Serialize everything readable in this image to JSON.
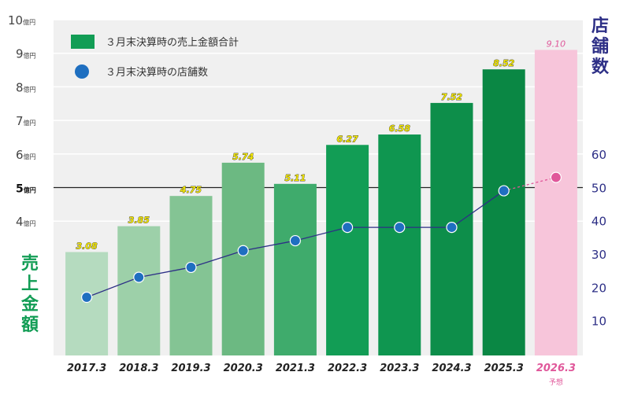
{
  "chart_data": {
    "type": "bar+line",
    "categories": [
      "2017.3",
      "2018.3",
      "2019.3",
      "2020.3",
      "2021.3",
      "2022.3",
      "2023.3",
      "2024.3",
      "2025.3",
      "2026.3"
    ],
    "forecast_note": "予想",
    "left_axis": {
      "title": "売上金額",
      "ylim": [
        0,
        10
      ],
      "ticks": [
        {
          "value": 4,
          "label": "4",
          "unit": "億円"
        },
        {
          "value": 5,
          "label": "5",
          "unit": "億円",
          "bold": true
        },
        {
          "value": 6,
          "label": "6",
          "unit": "億円"
        },
        {
          "value": 7,
          "label": "7",
          "unit": "億円"
        },
        {
          "value": 8,
          "label": "8",
          "unit": "億円"
        },
        {
          "value": 9,
          "label": "9",
          "unit": "億円"
        },
        {
          "value": 10,
          "label": "10",
          "unit": "億円"
        }
      ]
    },
    "right_axis": {
      "title": "店舗数",
      "ylim": [
        0,
        100
      ],
      "ticks": [
        10,
        20,
        30,
        40,
        50,
        60
      ]
    },
    "series": [
      {
        "name": "３月末決算時の売上金額合計",
        "kind": "bar",
        "axis": "left",
        "values": [
          3.08,
          3.85,
          4.75,
          5.74,
          5.11,
          6.27,
          6.58,
          7.52,
          8.52,
          9.1
        ],
        "labels": [
          "3.08",
          "3.85",
          "4.75",
          "5.74",
          "5.11",
          "6.27",
          "6.58",
          "7.52",
          "8.52",
          "9.10"
        ],
        "colors": [
          "#b5dbbf",
          "#9dd0a9",
          "#84c494",
          "#6cb982",
          "#3fab6c",
          "#129d55",
          "#0f9650",
          "#0d8e4a",
          "#0a8744",
          "#f7c5da"
        ]
      },
      {
        "name": "３月末決算時の店舗数",
        "kind": "line",
        "axis": "right",
        "values": [
          17,
          23,
          26,
          31,
          34,
          38,
          38,
          38,
          49,
          53
        ],
        "color": "#1f6fc0",
        "forecast_color": "#e0579a"
      }
    ],
    "reference_line": {
      "value": 5
    },
    "colors": {
      "left_title": "#129d55",
      "right_title": "#2d2f86",
      "legend_bar": "#129d55",
      "legend_dot": "#1f6fc0",
      "forecast_line": "#e0579a"
    }
  }
}
